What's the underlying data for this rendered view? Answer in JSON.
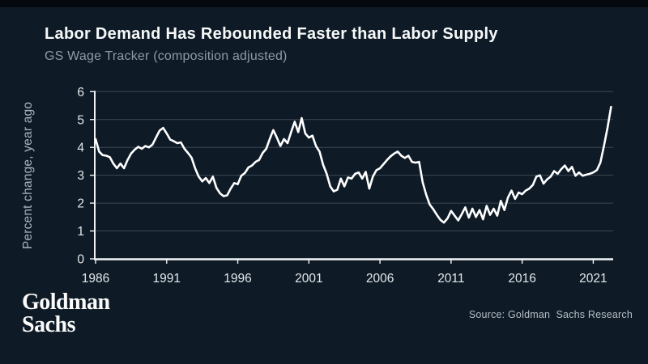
{
  "header": {
    "title": "Labor Demand Has Rebounded Faster than Labor Supply",
    "subtitle": "GS Wage Tracker (composition adjusted)"
  },
  "footer": {
    "logo_line1": "Goldman",
    "logo_line2": "Sachs",
    "source": "Source: Goldman  Sachs Research"
  },
  "colors": {
    "background": "#0e1b27",
    "top_strip": "#05090e",
    "title_text": "#f7f9f9",
    "subtitle_text": "#8e9aa5",
    "gridline": "#3d4754",
    "axis_spine": "#f2f4f5",
    "tick_label": "#e3e8ea",
    "series_line": "#ffffff",
    "source_text": "#b5bdc5"
  },
  "chart_data": {
    "type": "line",
    "title": "Labor Demand Has Rebounded Faster than Labor Supply",
    "subtitle": "GS Wage Tracker (composition adjusted)",
    "xlabel": "",
    "ylabel": "Percent change, year ago",
    "ylim": [
      0,
      6
    ],
    "yticks": [
      0,
      1,
      2,
      3,
      4,
      5,
      6
    ],
    "xlim": [
      1986,
      2022.4
    ],
    "xticks": [
      1986,
      1991,
      1996,
      2001,
      2006,
      2011,
      2016,
      2021
    ],
    "grid": "horizontal",
    "legend_position": "none",
    "series": [
      {
        "name": "GS Wage Tracker (composition adjusted), percent change vs year ago",
        "x_start": 1986.0,
        "x_step": 0.25,
        "values": [
          4.3,
          3.85,
          3.72,
          3.7,
          3.65,
          3.42,
          3.25,
          3.42,
          3.25,
          3.55,
          3.78,
          3.92,
          4.02,
          3.95,
          4.05,
          4.0,
          4.1,
          4.35,
          4.6,
          4.7,
          4.5,
          4.28,
          4.22,
          4.15,
          4.18,
          3.95,
          3.8,
          3.63,
          3.25,
          2.95,
          2.78,
          2.9,
          2.72,
          2.95,
          2.55,
          2.35,
          2.25,
          2.28,
          2.52,
          2.72,
          2.68,
          2.98,
          3.08,
          3.28,
          3.35,
          3.48,
          3.55,
          3.8,
          3.95,
          4.3,
          4.62,
          4.35,
          4.05,
          4.3,
          4.15,
          4.55,
          4.92,
          4.55,
          5.05,
          4.5,
          4.35,
          4.42,
          4.05,
          3.85,
          3.38,
          3.05,
          2.6,
          2.42,
          2.48,
          2.88,
          2.6,
          2.92,
          2.88,
          3.05,
          3.1,
          2.88,
          3.12,
          2.52,
          2.95,
          3.18,
          3.25,
          3.4,
          3.55,
          3.68,
          3.78,
          3.85,
          3.7,
          3.62,
          3.7,
          3.48,
          3.45,
          3.48,
          2.75,
          2.3,
          1.95,
          1.78,
          1.58,
          1.4,
          1.3,
          1.45,
          1.72,
          1.55,
          1.38,
          1.6,
          1.85,
          1.48,
          1.8,
          1.5,
          1.75,
          1.42,
          1.9,
          1.58,
          1.8,
          1.55,
          2.08,
          1.75,
          2.2,
          2.45,
          2.15,
          2.38,
          2.32,
          2.45,
          2.52,
          2.65,
          2.95,
          3.0,
          2.7,
          2.85,
          2.95,
          3.15,
          3.05,
          3.22,
          3.35,
          3.15,
          3.3,
          2.98,
          3.1,
          2.98,
          3.02,
          3.05,
          3.1,
          3.18,
          3.45,
          4.05,
          4.7,
          5.45
        ]
      }
    ]
  }
}
